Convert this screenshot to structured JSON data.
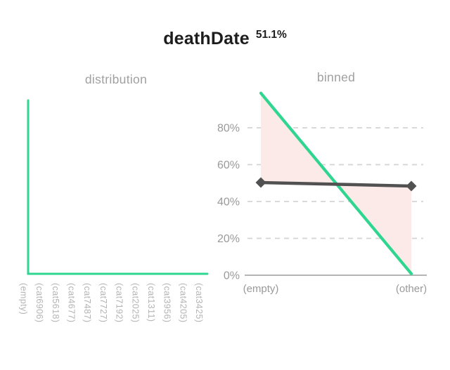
{
  "header": {
    "feature_name": "deathDate",
    "missing_percent": "51.1%"
  },
  "charts": {
    "distribution": {
      "title": "distribution"
    },
    "binned": {
      "title": "binned"
    }
  },
  "chart_data": [
    {
      "id": "distribution",
      "type": "line",
      "title": "distribution",
      "categories": [
        "(empty)",
        "(cat6906)",
        "(cat5618)",
        "(cat4677)",
        "(cat7487)",
        "(cat7727)",
        "(cat7192)",
        "(cat2025)",
        "(cat1311)",
        "(cat3956)",
        "(cat4205)",
        "(cat3425)"
      ],
      "series": [
        {
          "name": "value-distribution",
          "values": [
            100,
            0,
            0,
            0,
            0,
            0,
            0,
            0,
            0,
            0,
            0,
            0
          ],
          "color": "#2fd690"
        }
      ],
      "ylim": [
        0,
        100
      ],
      "grid": false,
      "shape": "spike-at-first-category",
      "legend": "none"
    },
    {
      "id": "binned",
      "type": "line",
      "title": "binned",
      "categories": [
        "(empty)",
        "(other)"
      ],
      "series": [
        {
          "name": "bin-percentage-line",
          "values": [
            98.8,
            0.8
          ],
          "color": "#2fd690",
          "marker": "none"
        },
        {
          "name": "reference-line",
          "values": [
            50.3,
            48.4
          ],
          "color": "#515151",
          "marker": "diamond"
        }
      ],
      "y_ticks": [
        {
          "label": "0%",
          "value": 0
        },
        {
          "label": "20%",
          "value": 20
        },
        {
          "label": "40%",
          "value": 40
        },
        {
          "label": "60%",
          "value": 60
        },
        {
          "label": "80%",
          "value": 80
        }
      ],
      "ylim": [
        0,
        100
      ],
      "grid": "dashed",
      "fill_between_color": "#fbeae8",
      "legend": "none"
    }
  ],
  "colors": {
    "accent_green": "#2fd690",
    "dark_line": "#515151",
    "fill_pink": "#fbeae8",
    "grid": "#d4d4d4",
    "axis": "#9b9b9b",
    "muted_text": "#9a9a9a",
    "category_text": "#b4b4b4",
    "title_text": "#1d1d1d"
  }
}
